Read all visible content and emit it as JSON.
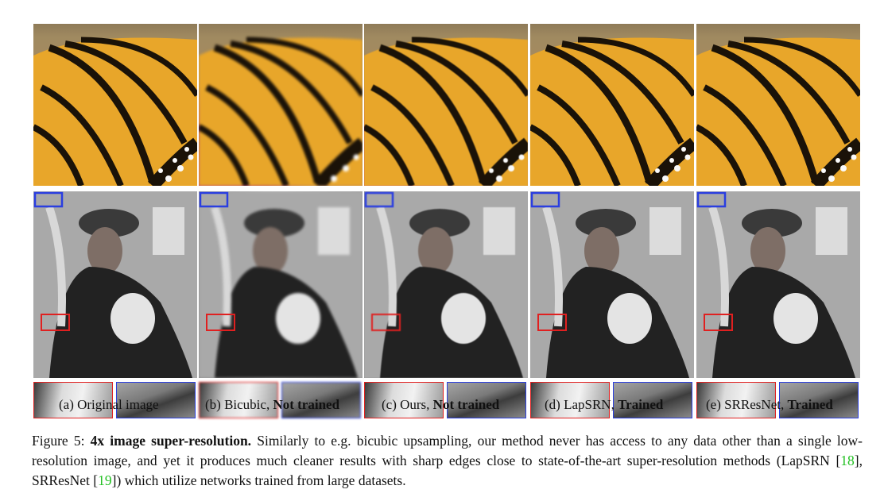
{
  "panels": [
    {
      "prefix": "(a) Original image",
      "suffix": "",
      "style": "sharp"
    },
    {
      "prefix": "(b) Bicubic, ",
      "suffix": "Not trained",
      "style": "blurred"
    },
    {
      "prefix": "(c) Ours, ",
      "suffix": "Not trained",
      "style": "smooth"
    },
    {
      "prefix": "(d) LapSRN, ",
      "suffix": "Trained",
      "style": "sharp"
    },
    {
      "prefix": "(e) SRResNet, ",
      "suffix": "Trained",
      "style": "sharp"
    }
  ],
  "figure_caption": {
    "label": "Figure 5: ",
    "bold_title": "4x image super-resolution.",
    "text_1": " Similarly to e.g. bicubic upsampling, our method never has access to any data other than a single low-resolution image, and yet it produces much cleaner results with sharp edges close to state-of-the-art super-resolution methods (LapSRN [",
    "cite_1": "18",
    "text_2": "], SRResNet [",
    "cite_2": "19",
    "text_3": "]) which utilize networks trained from large datasets."
  },
  "colors": {
    "highlight_red": "#e02020",
    "highlight_blue": "#2a3ee0",
    "citation_green": "#22c022"
  }
}
